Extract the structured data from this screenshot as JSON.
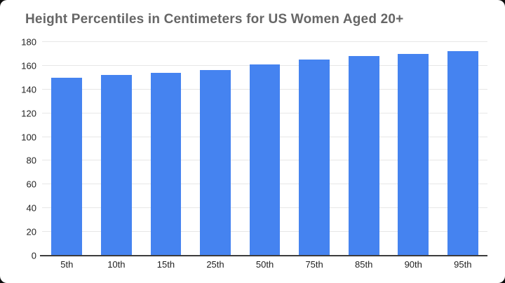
{
  "chart_data": {
    "type": "bar",
    "title": "Height Percentiles in Centimeters for US Women Aged 20+",
    "categories": [
      "5th",
      "10th",
      "15th",
      "25th",
      "50th",
      "75th",
      "85th",
      "90th",
      "95th"
    ],
    "values": [
      150,
      152.5,
      154,
      156.5,
      161,
      165.5,
      168,
      170,
      172.5
    ],
    "xlabel": "",
    "ylabel": "",
    "ylim": [
      0,
      180
    ],
    "y_ticks": [
      0,
      20,
      40,
      60,
      80,
      100,
      120,
      140,
      160,
      180
    ],
    "grid": true,
    "legend_position": "none",
    "colors": {
      "bar": "#4583f0",
      "title": "#666666",
      "axis_labels": "#222222",
      "gridline": "#e7e7e7",
      "axis_line": "#3c3c3c",
      "background": "#ffffff"
    }
  }
}
